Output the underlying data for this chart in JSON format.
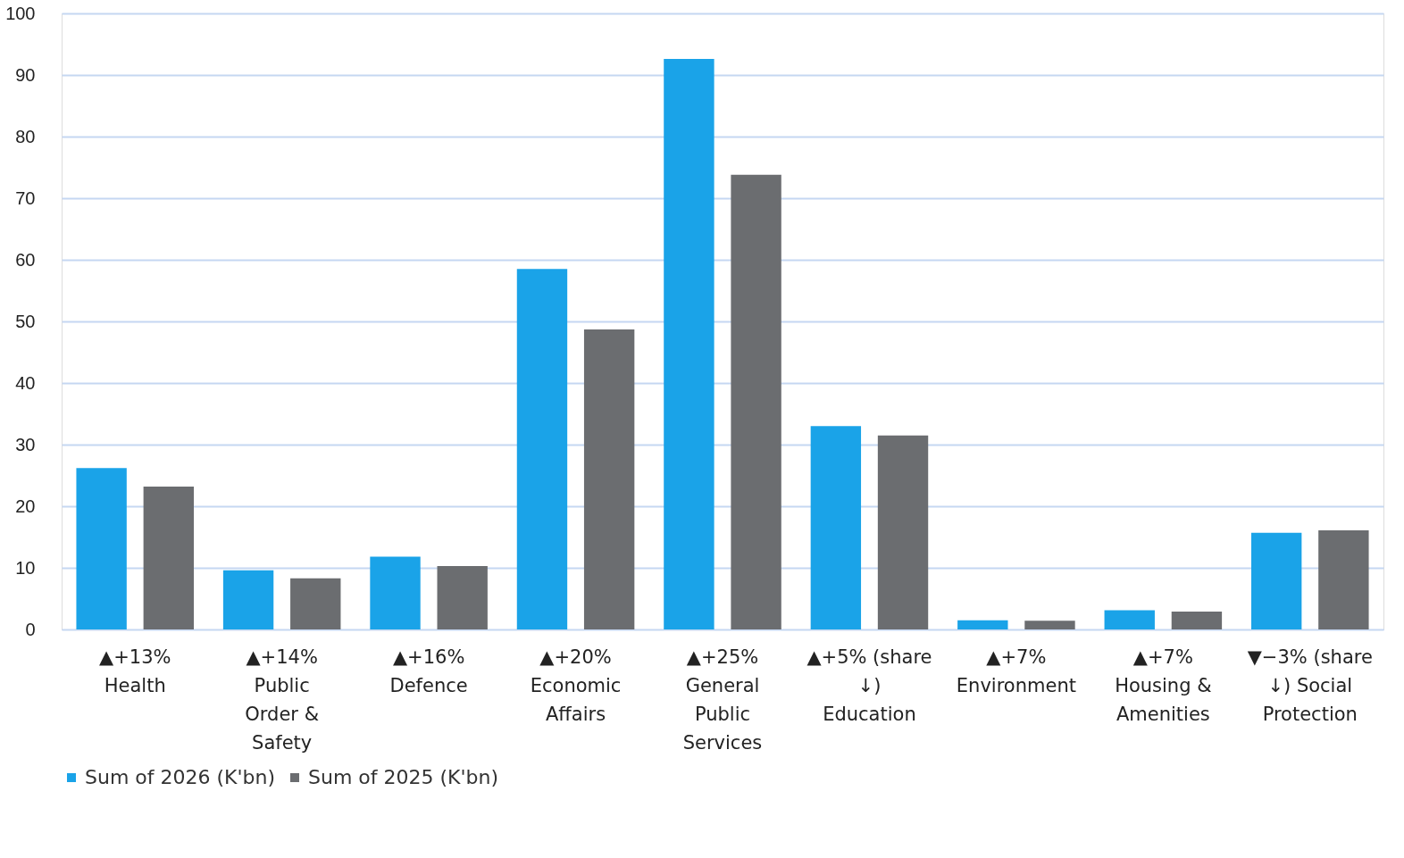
{
  "chart_data": {
    "type": "bar",
    "categories": [
      "▲+13% Health",
      "▲+14% Public Order & Safety",
      "▲+16% Defence",
      "▲+20% Economic Affairs",
      "▲+25% General Public Services",
      "▲+5% (share ↓) Education",
      "▲+7% Environment",
      "▲+7% Housing & Amenities",
      "▼−3% (share ↓) Social Protection"
    ],
    "series": [
      {
        "name": "Sum of 2026 (K'bn)",
        "color": "#1aa3e8",
        "values": [
          26.2,
          9.6,
          11.8,
          58.5,
          92.6,
          33.0,
          1.5,
          3.1,
          15.7
        ]
      },
      {
        "name": "Sum of 2025 (K'bn)",
        "color": "#6b6d70",
        "values": [
          23.2,
          8.3,
          10.3,
          48.7,
          73.8,
          31.5,
          1.4,
          2.9,
          16.1
        ]
      }
    ],
    "ylim": [
      0,
      100
    ],
    "yticks": [
      0,
      10,
      20,
      30,
      40,
      50,
      60,
      70,
      80,
      90,
      100
    ],
    "grid": "y",
    "legend": "bottom"
  }
}
